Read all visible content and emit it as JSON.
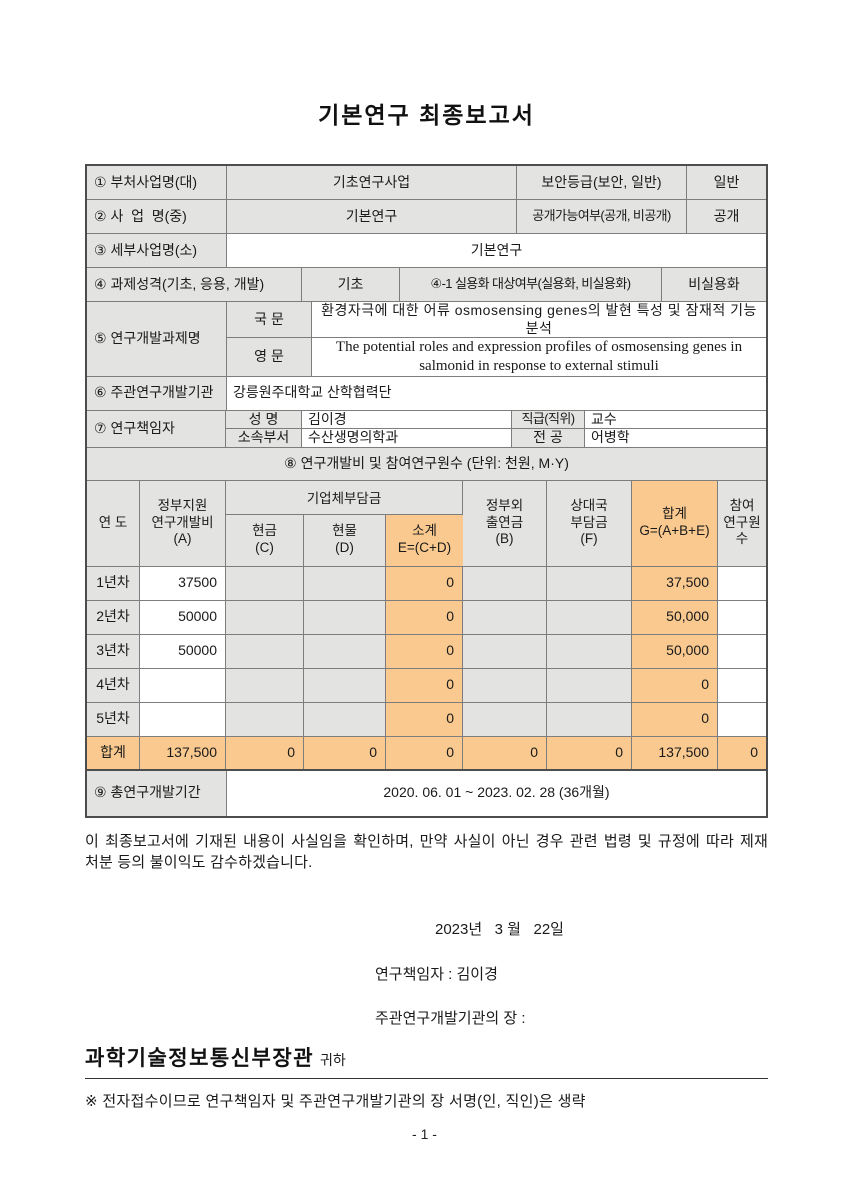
{
  "page": {
    "title": "기본연구 최종보고서",
    "page_number": "- 1 -"
  },
  "colors": {
    "cell_gray": "#e3e3e1",
    "cell_orange": "#f9c98f",
    "border": "#7d7d7d"
  },
  "info": {
    "row1": {
      "label": "① 부처사업명(대)",
      "value": "기초연구사업",
      "label2": "보안등급(보안, 일반)",
      "value2": "일반"
    },
    "row2": {
      "label": "② 사  업  명(중)",
      "value": "기본연구",
      "label2": "공개가능여부(공개, 비공개)",
      "value2": "공개"
    },
    "row3": {
      "label": "③ 세부사업명(소)",
      "value": "기본연구"
    },
    "row4": {
      "label": "④ 과제성격(기초, 응용, 개발)",
      "value": "기초",
      "label2": "④-1 실용화 대상여부(실용화, 비실용화)",
      "value2": "비실용화"
    },
    "row5": {
      "label": "⑤ 연구개발과제명",
      "kor_label": "국 문",
      "kor_value": "환경자극에 대한 어류 osmosensing genes의 발현 특성 및 잠재적 기능 분석",
      "eng_label": "영 문",
      "eng_value": "The potential roles and expression profiles of osmosensing genes in salmonid in response to external stimuli"
    },
    "row6": {
      "label": "⑥ 주관연구개발기관",
      "value": "강릉원주대학교 산학협력단"
    },
    "row7": {
      "label": "⑦ 연구책임자",
      "name_label": "성 명",
      "name": "김이경",
      "position_label": "직급(직위)",
      "position": "교수",
      "dept_label": "소속부서",
      "dept": "수산생명의학과",
      "major_label": "전 공",
      "major": "어병학"
    },
    "row8_header": "⑧ 연구개발비 및 참여연구원수 (단위: 천원, M·Y)",
    "row9": {
      "label": "⑨ 총연구개발기간",
      "value": "2020. 06. 01 ~ 2023. 02. 28 (36개월)"
    }
  },
  "budget": {
    "headers": {
      "year": "연 도",
      "gov": "정부지원\n연구개발비\n(A)",
      "company": "기업체부담금",
      "cash": "현금\n(C)",
      "inkind": "현물\n(D)",
      "subtotal": "소계\nE=(C+D)",
      "extra": "정부외\n출연금\n(B)",
      "partner": "상대국\n부담금\n(F)",
      "total": "합계\nG=(A+B+E)",
      "members": "참여\n연구원수"
    },
    "rows": [
      {
        "year": "1년차",
        "gov": "37500",
        "cash": "",
        "inkind": "",
        "subtotal": "0",
        "extra": "",
        "partner": "",
        "total": "37,500",
        "members": ""
      },
      {
        "year": "2년차",
        "gov": "50000",
        "cash": "",
        "inkind": "",
        "subtotal": "0",
        "extra": "",
        "partner": "",
        "total": "50,000",
        "members": ""
      },
      {
        "year": "3년차",
        "gov": "50000",
        "cash": "",
        "inkind": "",
        "subtotal": "0",
        "extra": "",
        "partner": "",
        "total": "50,000",
        "members": ""
      },
      {
        "year": "4년차",
        "gov": "",
        "cash": "",
        "inkind": "",
        "subtotal": "0",
        "extra": "",
        "partner": "",
        "total": "0",
        "members": ""
      },
      {
        "year": "5년차",
        "gov": "",
        "cash": "",
        "inkind": "",
        "subtotal": "0",
        "extra": "",
        "partner": "",
        "total": "0",
        "members": ""
      }
    ],
    "total_row": {
      "year": "합계",
      "gov": "137,500",
      "cash": "0",
      "inkind": "0",
      "subtotal": "0",
      "extra": "0",
      "partner": "0",
      "total": "137,500",
      "members": "0"
    }
  },
  "footer": {
    "confirmation": "이 최종보고서에 기재된 내용이 사실임을 확인하며, 만약 사실이 아닌 경우 관련 법령 및 규정에 따라 제재 처분 등의 불이익도 감수하겠습니다.",
    "date": "2023년   3 월   22일",
    "pi_line": "연구책임자 : 김이경",
    "org_line": "주관연구개발기관의 장 :",
    "recipient": "과학기술정보통신부장관",
    "recipient_suffix": "귀하",
    "note": "※ 전자접수이므로 연구책임자 및 주관연구개발기관의 장 서명(인, 직인)은 생략"
  }
}
